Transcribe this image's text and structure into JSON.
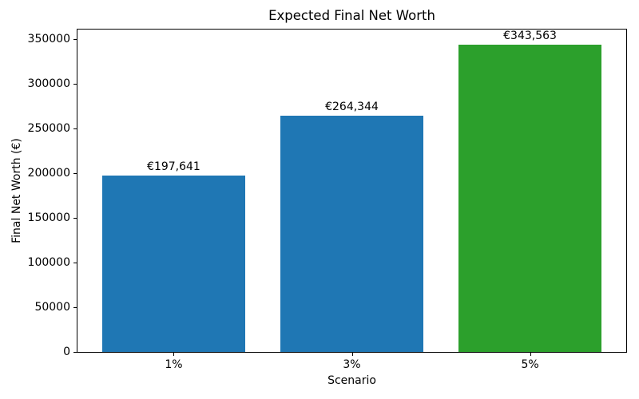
{
  "chart_data": {
    "type": "bar",
    "title": "Expected Final Net Worth",
    "xlabel": "Scenario",
    "ylabel": "Final Net Worth (€)",
    "categories": [
      "1%",
      "3%",
      "5%"
    ],
    "values": [
      197641,
      264344,
      343563
    ],
    "bar_labels": [
      "€197,641",
      "€264,344",
      "€343,563"
    ],
    "bar_colors": [
      "#1f77b4",
      "#1f77b4",
      "#2ca02c"
    ],
    "y_ticks": [
      0,
      50000,
      100000,
      150000,
      200000,
      250000,
      300000,
      350000
    ],
    "ylim": [
      0,
      360741
    ],
    "grid": false,
    "legend_position": "none",
    "spine_color": "#000000",
    "background_color": "#ffffff"
  }
}
